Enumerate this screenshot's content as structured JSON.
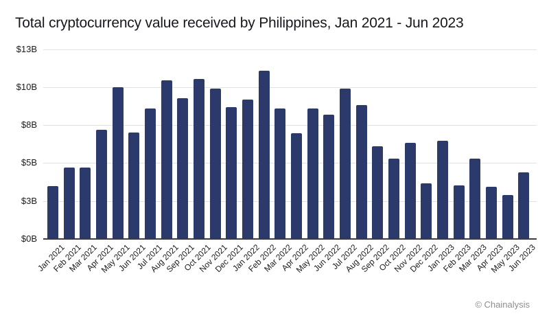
{
  "title": "Total cryptocurrency value received by Philippines, Jan 2021 - Jun 2023",
  "footer": {
    "attribution": "© Chainalysis"
  },
  "colors": {
    "bar": "#2b3a6a",
    "grid": "#e2e2e2",
    "axis": "#3c3c3c",
    "title_text": "#17171f",
    "tick_text": "#1b1b1b",
    "attribution_text": "#8e8e8e",
    "background": "#ffffff"
  },
  "chart_data": {
    "type": "bar",
    "title": "Total cryptocurrency value received by Philippines, Jan 2021 - Jun 2023",
    "xlabel": "",
    "ylabel": "",
    "categories": [
      "Jan 2021",
      "Feb 2021",
      "Mar 2021",
      "Apr 2021",
      "May 2021",
      "Jun 2021",
      "Jul 2021",
      "Aug 2021",
      "Sep 2021",
      "Oct 2021",
      "Nov 2021",
      "Dec 2021",
      "Jan 2022",
      "Feb 2022",
      "Mar 2022",
      "Apr 2022",
      "May 2022",
      "Jun 2022",
      "Jul 2022",
      "Aug 2022",
      "Sep 2022",
      "Oct 2022",
      "Nov 2022",
      "Dec 2022",
      "Jan 2023",
      "Feb 2023",
      "Mar 2023",
      "Apr 2023",
      "May 2023",
      "Jun 2023"
    ],
    "values": [
      3.5,
      4.7,
      4.7,
      7.2,
      10.0,
      7.0,
      8.6,
      10.45,
      9.25,
      10.55,
      9.9,
      8.7,
      9.2,
      11.1,
      8.6,
      6.95,
      8.6,
      8.2,
      9.9,
      8.8,
      6.1,
      5.3,
      6.35,
      3.65,
      6.45,
      3.55,
      5.3,
      3.45,
      2.9,
      4.4
    ],
    "value_unit": "$B",
    "ylim": [
      0,
      12.5
    ],
    "yticks": {
      "values": [
        0,
        2.5,
        5,
        7.5,
        10,
        12.5
      ],
      "labels": [
        "$0B",
        "$3B",
        "$5B",
        "$8B",
        "$10B",
        "$13B"
      ]
    },
    "grid": "horizontal",
    "legend": "none"
  }
}
